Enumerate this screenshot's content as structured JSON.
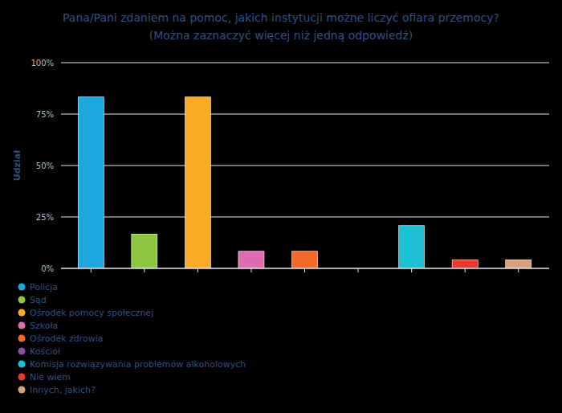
{
  "chart_data": {
    "type": "bar",
    "title": "Pana/Pani zdaniem na pomoc, jakich instytucji możne liczyć ofiara przemocy?",
    "subtitle": "(Można zaznaczyć więcej niż jedną odpowiedź)",
    "y_label": "Udział",
    "categories": [
      "Policja",
      "Sąd",
      "Ośrodek pomocy społecznej",
      "Szkoła",
      "Ośrodek zdrowia",
      "Kościół",
      "Komisja rozwiązywania problemów alkoholowych",
      "Nie wiem",
      "Innych, jakich?"
    ],
    "values": [
      83.3,
      16.7,
      83.3,
      8.3,
      8.3,
      0,
      20.8,
      4.2,
      4.2
    ],
    "colors": [
      "#1ea6e0",
      "#8cc63f",
      "#fbaa27",
      "#e06bb0",
      "#f26a2a",
      "#8e4f9e",
      "#1dbfd4",
      "#e8382f",
      "#d9a080"
    ],
    "ylim": [
      0,
      100
    ],
    "yticks": [
      {
        "value": 0,
        "label": "0%"
      },
      {
        "value": 25,
        "label": "25%"
      },
      {
        "value": 50,
        "label": "50%"
      },
      {
        "value": 75,
        "label": "75%"
      },
      {
        "value": 100,
        "label": "100%"
      }
    ],
    "grid": true,
    "legend": "bottom-left",
    "tick_labels": "y"
  }
}
